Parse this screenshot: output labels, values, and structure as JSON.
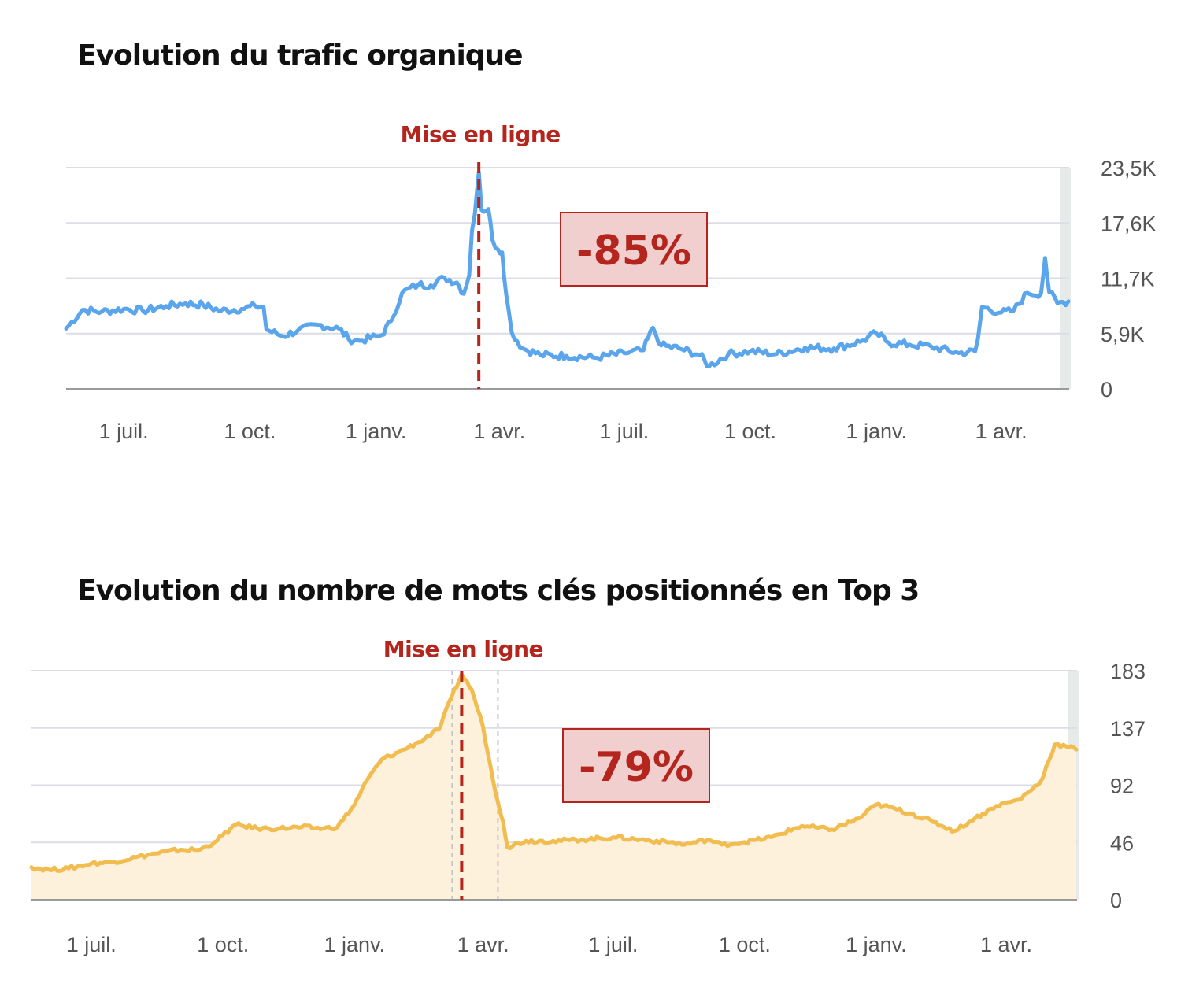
{
  "colors": {
    "traffic_line": "#5aa5ec",
    "keywords_line": "#f2bd50",
    "keywords_fill": "#fdf1dc",
    "marker": "#b3251d",
    "badge_fill": "#f1cfce",
    "badge_border": "#b3251d",
    "grid": "#dcdde6",
    "axis": "#9a9a9a",
    "right_band": "#e6ebea"
  },
  "chart_data": [
    {
      "type": "line",
      "title": "Evolution du trafic organique",
      "x_tick_labels": [
        "1 juil.",
        "1 oct.",
        "1 janv.",
        "1 avr.",
        "1 juil.",
        "1 oct.",
        "1 janv.",
        "1 avr."
      ],
      "x_range": [
        "2022-05-20",
        "2024-05-20"
      ],
      "y_tick_labels": [
        "23,5K",
        "17,6K",
        "11,7K",
        "5,9K",
        "0"
      ],
      "ylim": [
        0,
        23500
      ],
      "y_axis_position": "right",
      "grid": true,
      "marker": {
        "label": "Mise en ligne",
        "date": "2023-03-17",
        "style": "dashed"
      },
      "annotation": {
        "text": "-85%"
      },
      "series": [
        {
          "fill": false,
          "points": [
            [
              "2022-05-20",
              6400
            ],
            [
              "2022-06-01",
              8400
            ],
            [
              "2022-06-15",
              8200
            ],
            [
              "2022-07-01",
              8500
            ],
            [
              "2022-07-15",
              8300
            ],
            [
              "2022-08-01",
              8800
            ],
            [
              "2022-08-15",
              9100
            ],
            [
              "2022-08-28",
              8900
            ],
            [
              "2022-09-10",
              8300
            ],
            [
              "2022-09-25",
              8500
            ],
            [
              "2022-10-05",
              8800
            ],
            [
              "2022-10-11",
              8700
            ],
            [
              "2022-10-13",
              6300
            ],
            [
              "2022-10-25",
              5600
            ],
            [
              "2022-11-05",
              6200
            ],
            [
              "2022-11-20",
              6800
            ],
            [
              "2022-12-05",
              6400
            ],
            [
              "2022-12-12",
              5300
            ],
            [
              "2022-12-20",
              5100
            ],
            [
              "2023-01-05",
              5700
            ],
            [
              "2023-01-12",
              7200
            ],
            [
              "2023-01-20",
              10200
            ],
            [
              "2023-02-01",
              11100
            ],
            [
              "2023-02-10",
              11000
            ],
            [
              "2023-02-20",
              11800
            ],
            [
              "2023-03-01",
              11300
            ],
            [
              "2023-03-06",
              10100
            ],
            [
              "2023-03-10",
              12100
            ],
            [
              "2023-03-12",
              16800
            ],
            [
              "2023-03-14",
              18500
            ],
            [
              "2023-03-16",
              21500
            ],
            [
              "2023-03-17",
              23000
            ],
            [
              "2023-03-19",
              19000
            ],
            [
              "2023-03-24",
              19100
            ],
            [
              "2023-03-27",
              15800
            ],
            [
              "2023-03-31",
              14800
            ],
            [
              "2023-04-03",
              14500
            ],
            [
              "2023-04-06",
              10000
            ],
            [
              "2023-04-10",
              6000
            ],
            [
              "2023-04-18",
              4300
            ],
            [
              "2023-05-01",
              3600
            ],
            [
              "2023-05-20",
              3500
            ],
            [
              "2023-06-10",
              3300
            ],
            [
              "2023-07-01",
              3800
            ],
            [
              "2023-07-15",
              4100
            ],
            [
              "2023-07-22",
              6500
            ],
            [
              "2023-07-28",
              4600
            ],
            [
              "2023-08-10",
              4300
            ],
            [
              "2023-08-25",
              3600
            ],
            [
              "2023-09-01",
              2400
            ],
            [
              "2023-09-15",
              3700
            ],
            [
              "2023-10-01",
              4000
            ],
            [
              "2023-10-20",
              3700
            ],
            [
              "2023-11-10",
              4400
            ],
            [
              "2023-12-01",
              4300
            ],
            [
              "2023-12-20",
              5000
            ],
            [
              "2024-01-01",
              5900
            ],
            [
              "2024-01-10",
              4900
            ],
            [
              "2024-01-25",
              4700
            ],
            [
              "2024-02-10",
              4500
            ],
            [
              "2024-03-01",
              3800
            ],
            [
              "2024-03-13",
              4000
            ],
            [
              "2024-03-15",
              5300
            ],
            [
              "2024-03-18",
              8700
            ],
            [
              "2024-04-01",
              8100
            ],
            [
              "2024-04-10",
              8300
            ],
            [
              "2024-04-20",
              10200
            ],
            [
              "2024-04-30",
              10100
            ],
            [
              "2024-05-03",
              13900
            ],
            [
              "2024-05-06",
              10300
            ],
            [
              "2024-05-12",
              9100
            ],
            [
              "2024-05-20",
              9300
            ]
          ]
        }
      ]
    },
    {
      "type": "area",
      "title": "Evolution du nombre de mots clés positionnés en Top 3",
      "x_tick_labels": [
        "1 juil.",
        "1 oct.",
        "1 janv.",
        "1 avr.",
        "1 juil.",
        "1 oct.",
        "1 janv.",
        "1 avr."
      ],
      "x_range": [
        "2022-05-20",
        "2024-05-20"
      ],
      "y_tick_labels": [
        "183",
        "137",
        "92",
        "46",
        "0"
      ],
      "ylim": [
        0,
        183
      ],
      "y_axis_position": "right",
      "grid": true,
      "marker": {
        "label": "Mise en ligne",
        "date": "2023-03-17",
        "style": "dashed"
      },
      "annotation": {
        "text": "-79%"
      },
      "series": [
        {
          "fill": true,
          "points": [
            [
              "2022-05-20",
              26
            ],
            [
              "2022-06-01",
              24
            ],
            [
              "2022-06-15",
              25
            ],
            [
              "2022-07-01",
              29
            ],
            [
              "2022-07-15",
              30
            ],
            [
              "2022-08-01",
              34
            ],
            [
              "2022-08-15",
              37
            ],
            [
              "2022-09-01",
              40
            ],
            [
              "2022-09-15",
              40
            ],
            [
              "2022-09-25",
              46
            ],
            [
              "2022-10-10",
              60
            ],
            [
              "2022-10-25",
              57
            ],
            [
              "2022-11-10",
              57
            ],
            [
              "2022-11-25",
              58
            ],
            [
              "2022-12-10",
              57
            ],
            [
              "2022-12-20",
              58
            ],
            [
              "2023-01-01",
              76
            ],
            [
              "2023-01-10",
              96
            ],
            [
              "2023-01-20",
              112
            ],
            [
              "2023-02-01",
              118
            ],
            [
              "2023-02-15",
              126
            ],
            [
              "2023-03-01",
              136
            ],
            [
              "2023-03-10",
              162
            ],
            [
              "2023-03-17",
              180
            ],
            [
              "2023-03-24",
              168
            ],
            [
              "2023-04-01",
              138
            ],
            [
              "2023-04-08",
              95
            ],
            [
              "2023-04-15",
              62
            ],
            [
              "2023-04-18",
              42
            ],
            [
              "2023-05-01",
              47
            ],
            [
              "2023-05-20",
              47
            ],
            [
              "2023-06-10",
              48
            ],
            [
              "2023-07-01",
              50
            ],
            [
              "2023-07-20",
              48
            ],
            [
              "2023-08-10",
              46
            ],
            [
              "2023-08-20",
              44
            ],
            [
              "2023-09-05",
              48
            ],
            [
              "2023-09-15",
              44
            ],
            [
              "2023-10-01",
              46
            ],
            [
              "2023-10-20",
              50
            ],
            [
              "2023-11-10",
              59
            ],
            [
              "2023-12-01",
              56
            ],
            [
              "2023-12-20",
              65
            ],
            [
              "2024-01-01",
              76
            ],
            [
              "2024-01-10",
              74
            ],
            [
              "2024-01-25",
              69
            ],
            [
              "2024-02-10",
              62
            ],
            [
              "2024-02-25",
              55
            ],
            [
              "2024-03-10",
              65
            ],
            [
              "2024-03-25",
              75
            ],
            [
              "2024-04-10",
              80
            ],
            [
              "2024-04-25",
              94
            ],
            [
              "2024-05-05",
              124
            ],
            [
              "2024-05-15",
              122
            ],
            [
              "2024-05-20",
              120
            ]
          ]
        }
      ]
    }
  ]
}
